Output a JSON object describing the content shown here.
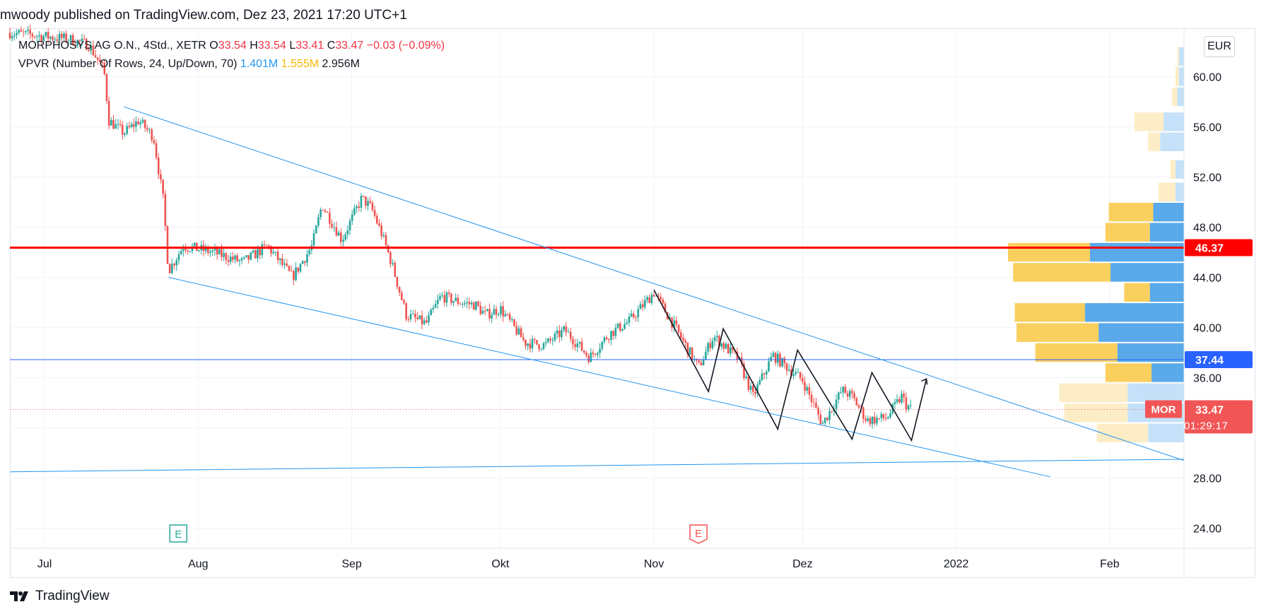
{
  "header": {
    "published_by": "mwoody published on TradingView.com, Dez 23, 2021 17:20 UTC+1"
  },
  "legend": {
    "symbol": "MORPHOSYS AG O.N., 4Std., XETR",
    "ohlc": [
      {
        "label": "O",
        "value": "33.54"
      },
      {
        "label": "H",
        "value": "33.54"
      },
      {
        "label": "L",
        "value": "33.41"
      },
      {
        "label": "C",
        "value": "33.47"
      }
    ],
    "change": "−0.03 (−0.09%)",
    "indicator_name": "VPVR (Number Of Rows, 24, Up/Down, 70)",
    "indicator_up": "1.401M",
    "indicator_down": "1.555M",
    "indicator_total": "2.956M"
  },
  "currency_button": "EUR",
  "price_labels": {
    "resistance": "46.37",
    "support": "37.44",
    "symbol_tag": "MOR",
    "last_price": "33.47",
    "countdown": "01:29:17"
  },
  "earnings_marker": "E",
  "footer": {
    "brand": "TradingView"
  },
  "colors": {
    "bull": "#26a69a",
    "bear": "#ef5350",
    "resistance": "#ff0000",
    "support": "#2962ff",
    "channel": "#2196f3",
    "vp_up": "#5aa9ea",
    "vp_down": "#f9cf5e",
    "vp_up_faded": "#c4e1f9",
    "vp_down_faded": "#fdedc6",
    "last_price": "#f25555"
  },
  "chart_data": {
    "type": "candlestick",
    "title": "MORPHOSYS AG O.N., 4Std., XETR",
    "x_axis": {
      "type": "date",
      "ticks": [
        {
          "date": "2021-07-01",
          "label": "Jul"
        },
        {
          "date": "2021-08-01",
          "label": "Aug"
        },
        {
          "date": "2021-09-01",
          "label": "Sep"
        },
        {
          "date": "2021-10-01",
          "label": "Okt"
        },
        {
          "date": "2021-11-01",
          "label": "Nov"
        },
        {
          "date": "2021-12-01",
          "label": "Dez"
        },
        {
          "date": "2022-01-01",
          "label": "2022"
        },
        {
          "date": "2022-02-01",
          "label": "Feb"
        }
      ],
      "range": [
        "2021-06-24",
        "2022-02-16"
      ]
    },
    "y_axis": {
      "ticks": [
        "24.00",
        "28.00",
        "32.00",
        "36.00",
        "40.00",
        "44.00",
        "48.00",
        "52.00",
        "56.00",
        "60.00"
      ],
      "tick_values": [
        24,
        28,
        32,
        36,
        40,
        44,
        48,
        52,
        56,
        60
      ],
      "range": [
        22.4,
        63.8
      ],
      "currency": "EUR"
    },
    "grid": true,
    "price_path": [
      [
        "2021-06-24",
        63.5
      ],
      [
        "2021-07-06",
        63.0
      ],
      [
        "2021-07-10",
        62.5
      ],
      [
        "2021-07-13",
        60.5
      ],
      [
        "2021-07-14",
        56.5
      ],
      [
        "2021-07-17",
        55.5
      ],
      [
        "2021-07-20",
        56.5
      ],
      [
        "2021-07-23",
        55.2
      ],
      [
        "2021-07-25",
        50.0
      ],
      [
        "2021-07-26",
        44.5
      ],
      [
        "2021-07-29",
        46.5
      ],
      [
        "2021-08-04",
        46.0
      ],
      [
        "2021-08-10",
        45.2
      ],
      [
        "2021-08-15",
        46.5
      ],
      [
        "2021-08-20",
        44.0
      ],
      [
        "2021-08-24",
        46.5
      ],
      [
        "2021-08-26",
        49.8
      ],
      [
        "2021-08-30",
        47.0
      ],
      [
        "2021-09-03",
        50.3
      ],
      [
        "2021-09-05",
        49.5
      ],
      [
        "2021-09-07",
        47.5
      ],
      [
        "2021-09-09",
        45.2
      ],
      [
        "2021-09-12",
        41.0
      ],
      [
        "2021-09-16",
        40.3
      ],
      [
        "2021-09-19",
        42.5
      ],
      [
        "2021-09-23",
        42.0
      ],
      [
        "2021-09-26",
        41.8
      ],
      [
        "2021-09-28",
        41.0
      ],
      [
        "2021-10-01",
        41.5
      ],
      [
        "2021-10-06",
        38.8
      ],
      [
        "2021-10-10",
        38.6
      ],
      [
        "2021-10-14",
        39.8
      ],
      [
        "2021-10-19",
        37.6
      ],
      [
        "2021-10-23",
        39.5
      ],
      [
        "2021-10-27",
        40.5
      ],
      [
        "2021-11-01",
        42.8
      ],
      [
        "2021-11-05",
        40.2
      ],
      [
        "2021-11-10",
        36.8
      ],
      [
        "2021-11-13",
        39.3
      ],
      [
        "2021-11-18",
        37.5
      ],
      [
        "2021-11-21",
        34.5
      ],
      [
        "2021-11-25",
        37.8
      ],
      [
        "2021-12-01",
        35.8
      ],
      [
        "2021-12-05",
        32.3
      ],
      [
        "2021-12-09",
        35.0
      ],
      [
        "2021-12-11",
        34.5
      ],
      [
        "2021-12-14",
        32.6
      ],
      [
        "2021-12-18",
        32.8
      ],
      [
        "2021-12-21",
        34.5
      ],
      [
        "2021-12-22",
        33.8
      ],
      [
        "2021-12-23",
        33.47
      ]
    ],
    "horizontal_lines": [
      {
        "price": 46.37,
        "label": "46.37",
        "color": "#ff0000"
      },
      {
        "price": 37.44,
        "label": "37.44",
        "color": "#2962ff"
      },
      {
        "price": 33.47,
        "label": "33.47",
        "color": "#f25555",
        "style": "dotted"
      }
    ],
    "trend_lines": [
      {
        "from": [
          "2021-07-17",
          57.6
        ],
        "to": [
          "2022-02-16",
          29.4
        ]
      },
      {
        "from": [
          "2021-07-26",
          44.0
        ],
        "to": [
          "2022-01-20",
          28.1
        ]
      },
      {
        "from": [
          "2021-06-24",
          28.5
        ],
        "to": [
          "2022-02-16",
          29.5
        ]
      }
    ],
    "zigzag": [
      [
        "2021-11-01",
        43.0
      ],
      [
        "2021-11-12",
        34.9
      ],
      [
        "2021-11-15",
        39.9
      ],
      [
        "2021-11-26",
        31.9
      ],
      [
        "2021-11-30",
        38.2
      ],
      [
        "2021-12-11",
        31.1
      ],
      [
        "2021-12-15",
        36.4
      ],
      [
        "2021-12-23",
        31.0
      ],
      [
        "2021-12-26",
        35.9
      ]
    ],
    "earnings_events": [
      "2021-07-28",
      "2021-11-10"
    ],
    "volume_profile": [
      {
        "price": 61.6,
        "up_width": 0.03,
        "down_width": 0.01,
        "faded": true
      },
      {
        "price": 60.0,
        "up_width": 0.03,
        "down_width": 0.02,
        "faded": true
      },
      {
        "price": 58.4,
        "up_width": 0.04,
        "down_width": 0.03,
        "faded": true
      },
      {
        "price": 56.4,
        "up_width": 0.12,
        "down_width": 0.17,
        "faded": true
      },
      {
        "price": 54.8,
        "up_width": 0.14,
        "down_width": 0.07,
        "faded": true
      },
      {
        "price": 52.6,
        "up_width": 0.05,
        "down_width": 0.03,
        "faded": true
      },
      {
        "price": 50.8,
        "up_width": 0.05,
        "down_width": 0.1,
        "faded": true
      },
      {
        "price": 49.2,
        "up_width": 0.18,
        "down_width": 0.26,
        "faded": false
      },
      {
        "price": 47.6,
        "up_width": 0.2,
        "down_width": 0.26,
        "faded": false
      },
      {
        "price": 46.0,
        "up_width": 0.55,
        "down_width": 0.48,
        "faded": false
      },
      {
        "price": 44.4,
        "up_width": 0.43,
        "down_width": 0.57,
        "faded": false
      },
      {
        "price": 42.8,
        "up_width": 0.2,
        "down_width": 0.15,
        "faded": false
      },
      {
        "price": 41.2,
        "up_width": 0.58,
        "down_width": 0.41,
        "faded": false
      },
      {
        "price": 39.6,
        "up_width": 0.5,
        "down_width": 0.48,
        "faded": false
      },
      {
        "price": 38.0,
        "up_width": 0.39,
        "down_width": 0.48,
        "faded": false
      },
      {
        "price": 36.4,
        "up_width": 0.19,
        "down_width": 0.27,
        "faded": false
      },
      {
        "price": 34.8,
        "up_width": 0.33,
        "down_width": 0.4,
        "faded": true
      },
      {
        "price": 33.2,
        "up_width": 0.33,
        "down_width": 0.37,
        "faded": true
      },
      {
        "price": 31.6,
        "up_width": 0.21,
        "down_width": 0.3,
        "faded": true
      }
    ]
  }
}
